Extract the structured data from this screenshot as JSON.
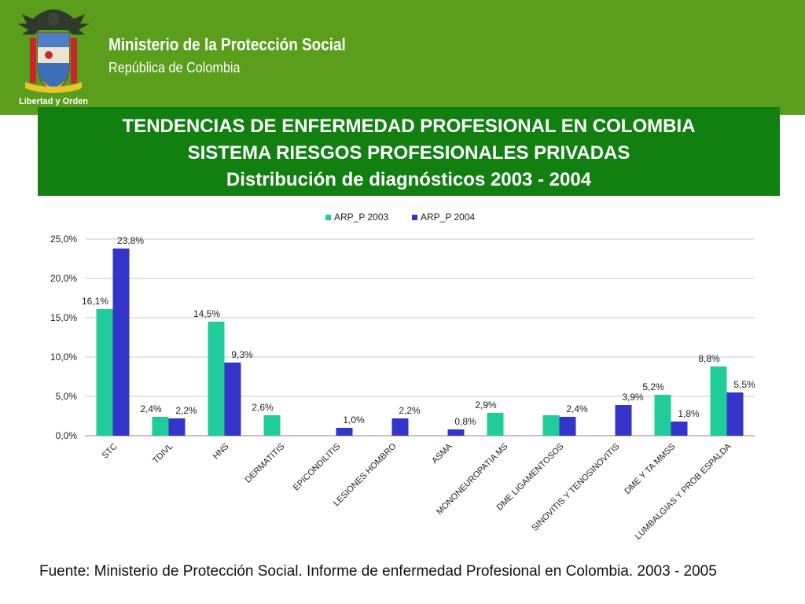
{
  "header": {
    "ministry": "Ministerio de la Protección Social",
    "republic": "República de Colombia",
    "emblem_motto": "Libertad y Orden"
  },
  "title": {
    "line1": "TENDENCIAS DE ENFERMEDAD PROFESIONAL EN COLOMBIA",
    "line2": "SISTEMA RIESGOS PROFESIONALES PRIVADAS",
    "line3": "Distribución de diagnósticos 2003 - 2004"
  },
  "source": "Fuente: Ministerio de Protección Social. Informe de enfermedad Profesional en Colombia. 2003 - 2005",
  "colors": {
    "banner": "#5a9e1c",
    "title_box": "#118011",
    "series_2003": "#1fcc9a",
    "series_2004": "#3434c8"
  },
  "chart_data": {
    "type": "bar",
    "title": "",
    "xlabel": "",
    "ylabel": "",
    "ylim": [
      0,
      25
    ],
    "yticks": [
      "0,0%",
      "5,0%",
      "10,0%",
      "15,0%",
      "20,0%",
      "25,0%"
    ],
    "grid": true,
    "legend_position": "top",
    "categories": [
      "STC",
      "TDIVL",
      "HNS",
      "DERMATITIS",
      "EPICONDILITIS",
      "LESIONES HOMBRO",
      "ASMA",
      "MONONEUROPATIA MS",
      "DME LIGAMENTOSOS",
      "SINOVITIS Y TENOSINOVITIS",
      "DME Y TA MMSS",
      "LUMBALGIAS Y PROB ESPALDA"
    ],
    "series": [
      {
        "name": "ARP_P 2003",
        "color": "#1fcc9a",
        "values": [
          16.1,
          2.4,
          14.5,
          2.6,
          null,
          null,
          null,
          2.9,
          2.6,
          null,
          5.2,
          8.8
        ],
        "labels": [
          "16,1%",
          "2,4%",
          "14,5%",
          "2,6%",
          null,
          null,
          null,
          "2,9%",
          null,
          null,
          "5,2%",
          "8,8%"
        ]
      },
      {
        "name": "ARP_P 2004",
        "color": "#3434c8",
        "values": [
          23.8,
          2.2,
          9.3,
          null,
          1.0,
          2.2,
          0.8,
          null,
          2.4,
          3.9,
          1.8,
          5.5
        ],
        "labels": [
          "23,8%",
          "2,2%",
          "9,3%",
          null,
          "1,0%",
          "2,2%",
          "0,8%",
          null,
          "2,4%",
          "3,9%",
          "1,8%",
          "5,5%"
        ]
      }
    ]
  }
}
